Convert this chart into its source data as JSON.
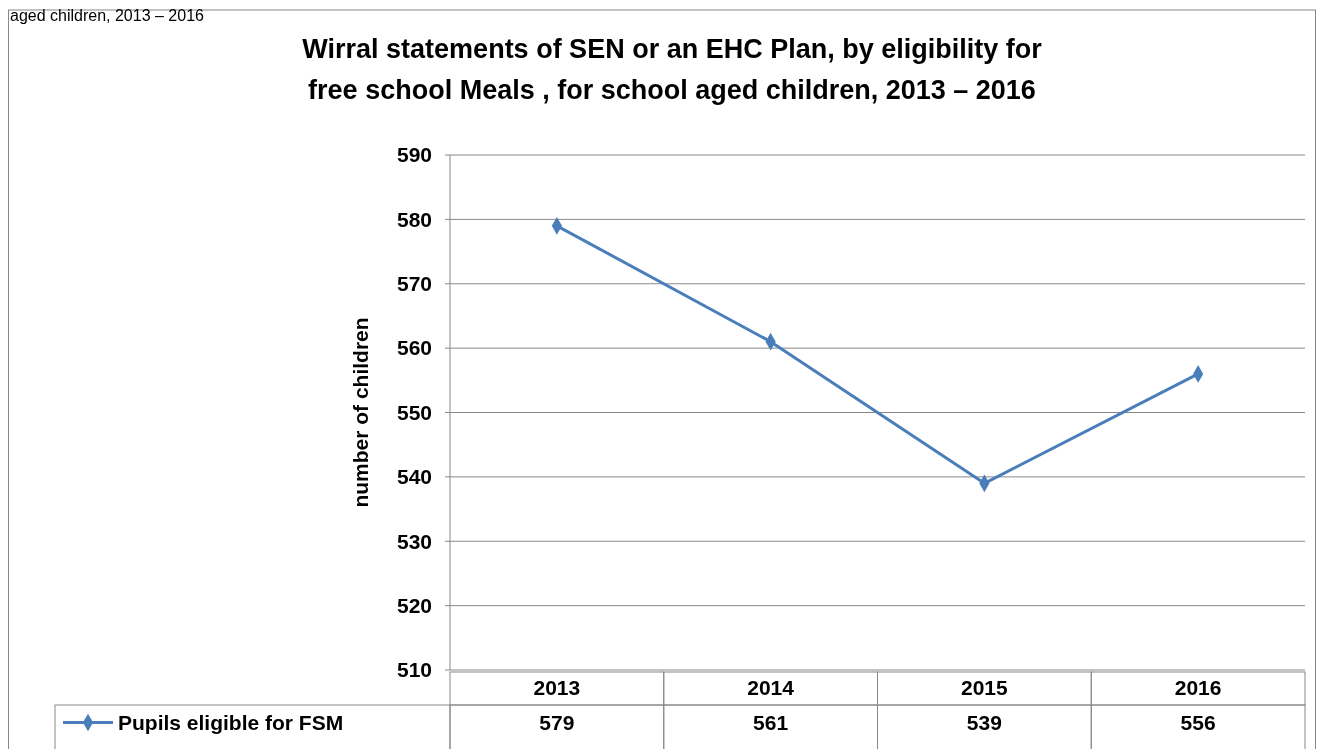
{
  "chart_data": {
    "type": "line",
    "title": "Wirral statements of SEN or an EHC Plan, by eligibility for free school Meals , for school aged children, 2013 – 2016",
    "annotations": [
      "aged children, 2013 – 2016"
    ],
    "ylabel": "number of children",
    "categories": [
      "2013",
      "2014",
      "2015",
      "2016"
    ],
    "series": [
      {
        "name": "Pupils eligible for FSM",
        "color": "#4a7ebb",
        "values": [
          579,
          561,
          539,
          556
        ]
      }
    ],
    "ylim": [
      510,
      590
    ],
    "yticks": [
      510,
      520,
      530,
      540,
      550,
      560,
      570,
      580,
      590
    ],
    "grid": "y",
    "legend": "bottom",
    "marker": "diamond",
    "line_style": "solid",
    "data_labels": true
  }
}
